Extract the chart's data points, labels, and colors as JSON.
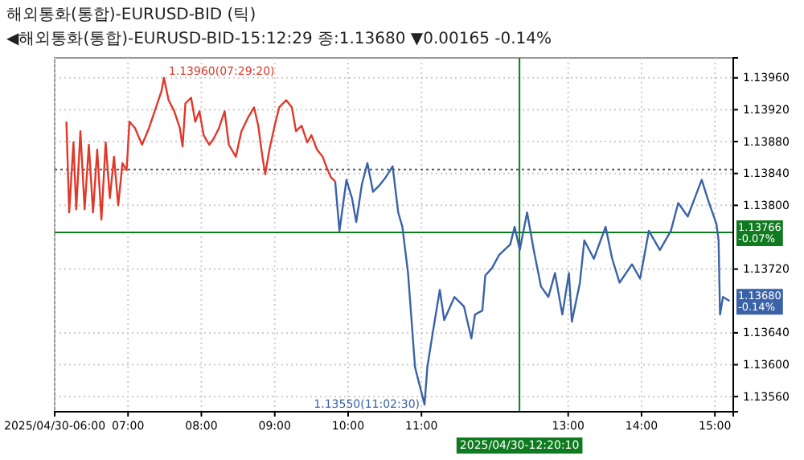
{
  "chart_data": {
    "type": "line",
    "title": "해외통화(통합)-EURUSD-BID (틱)",
    "subtitle": "◀해외통화(통합)-EURUSD-BID-15:12:29 종:1.13680 ▼0.00165 -0.14%",
    "xlim": [
      6,
      15.25
    ],
    "xticks": [
      {
        "value": 6,
        "label": "2025/04/30-06:00"
      },
      {
        "value": 7,
        "label": "07:00"
      },
      {
        "value": 8,
        "label": "08:00"
      },
      {
        "value": 9,
        "label": "09:00"
      },
      {
        "value": 10,
        "label": "10:00"
      },
      {
        "value": 11,
        "label": "11:00"
      },
      {
        "value": 13,
        "label": "13:00"
      },
      {
        "value": 14,
        "label": "14:00"
      },
      {
        "value": 15,
        "label": "15:00"
      }
    ],
    "ylim": [
      1.13541,
      1.13985
    ],
    "yticks": [
      {
        "value": 1.1356,
        "label": "1.13560"
      },
      {
        "value": 1.136,
        "label": "1.13600"
      },
      {
        "value": 1.1364,
        "label": "1.13640"
      },
      {
        "value": 1.1372,
        "label": "1.13720"
      },
      {
        "value": 1.138,
        "label": "1.13800"
      },
      {
        "value": 1.1384,
        "label": "1.13840"
      },
      {
        "value": 1.1388,
        "label": "1.13880"
      },
      {
        "value": 1.1392,
        "label": "1.13920"
      },
      {
        "value": 1.1396,
        "label": "1.13960"
      }
    ],
    "grid": true,
    "line_style": "solid",
    "series": [
      {
        "color": "#e0392b",
        "x": [
          6.16,
          6.198,
          6.256,
          6.294,
          6.351,
          6.408,
          6.466,
          6.523,
          6.58,
          6.637,
          6.695,
          6.752,
          6.809,
          6.866,
          6.924,
          6.981,
          7.019,
          7.095,
          7.191,
          7.286,
          7.382,
          7.458,
          7.489,
          7.553,
          7.63,
          7.706,
          7.744,
          7.782,
          7.859,
          7.916,
          7.973,
          8.031,
          8.107,
          8.164,
          8.24,
          8.317,
          8.374,
          8.469,
          8.546,
          8.641,
          8.718,
          8.775,
          8.832,
          8.87,
          8.927,
          9.004,
          9.061,
          9.156,
          9.233,
          9.29,
          9.366,
          9.443,
          9.5,
          9.576,
          9.653,
          9.71,
          9.767,
          9.824
        ],
        "values": [
          1.13905,
          1.13791,
          1.13879,
          1.13795,
          1.13893,
          1.13795,
          1.13876,
          1.13791,
          1.1387,
          1.13782,
          1.13879,
          1.13809,
          1.13861,
          1.138,
          1.13853,
          1.13844,
          1.13905,
          1.13897,
          1.13876,
          1.13897,
          1.13923,
          1.13944,
          1.1396,
          1.13932,
          1.13918,
          1.13897,
          1.13874,
          1.13928,
          1.13935,
          1.13905,
          1.13918,
          1.13888,
          1.13876,
          1.13883,
          1.13897,
          1.13918,
          1.13876,
          1.13861,
          1.13893,
          1.13911,
          1.13923,
          1.139,
          1.13861,
          1.13839,
          1.1387,
          1.13902,
          1.13923,
          1.13932,
          1.13923,
          1.13893,
          1.139,
          1.13879,
          1.13888,
          1.1387,
          1.13861,
          1.13847,
          1.13835,
          1.1383
        ]
      },
      {
        "color": "#3a62a8",
        "x": [
          9.824,
          9.882,
          9.977,
          10.053,
          10.111,
          10.187,
          10.263,
          10.34,
          10.435,
          10.511,
          10.607,
          10.683,
          10.74,
          10.817,
          10.912,
          11.042,
          11.08,
          11.15,
          11.25,
          11.31,
          11.45,
          11.58,
          11.68,
          11.73,
          11.83,
          11.87,
          11.96,
          12.06,
          12.21,
          12.27,
          12.34,
          12.44,
          12.53,
          12.63,
          12.73,
          12.82,
          12.92,
          13.01,
          13.05,
          13.16,
          13.22,
          13.35,
          13.51,
          13.6,
          13.7,
          13.87,
          13.98,
          14.1,
          14.25,
          14.4,
          14.5,
          14.63,
          14.82,
          14.92,
          15.02,
          15.05,
          15.07,
          15.11,
          15.2
        ],
        "values": [
          1.1383,
          1.13768,
          1.13832,
          1.13809,
          1.13779,
          1.13826,
          1.13853,
          1.13817,
          1.13826,
          1.13835,
          1.13849,
          1.13791,
          1.13773,
          1.13715,
          1.13597,
          1.1355,
          1.13597,
          1.13638,
          1.13694,
          1.13656,
          1.13685,
          1.13673,
          1.13633,
          1.13663,
          1.13668,
          1.13712,
          1.13721,
          1.13738,
          1.13751,
          1.13773,
          1.13744,
          1.13791,
          1.13744,
          1.13698,
          1.13685,
          1.13715,
          1.13663,
          1.13715,
          1.13654,
          1.13703,
          1.13756,
          1.13733,
          1.13773,
          1.13733,
          1.13703,
          1.13726,
          1.13708,
          1.13768,
          1.13744,
          1.13768,
          1.13803,
          1.13786,
          1.13832,
          1.13803,
          1.13777,
          1.13756,
          1.13663,
          1.13685,
          1.1368
        ]
      }
    ],
    "ref_lines": [
      {
        "axis": "y",
        "value": 1.13845,
        "color": "#555555",
        "line_style": "dotted"
      },
      {
        "axis": "y",
        "value": 1.13766,
        "label": "1.13766 -0.07%",
        "color": "#0f7a1f",
        "line_style": "solid"
      },
      {
        "axis": "x",
        "value": 12.33611,
        "color": "#0f7a1f",
        "line_style": "solid"
      }
    ],
    "annotations": [
      {
        "text": "1.13960(07:29:20)",
        "x": 7.489,
        "y": 1.1396
      },
      {
        "text": "1.13550(11:02:30)",
        "x": 11.042,
        "y": 1.1355
      },
      {
        "text": "1.13680 -0.14%",
        "x": 15.2,
        "y": 1.1368
      },
      "2025/04/30-12:20:10"
    ]
  }
}
